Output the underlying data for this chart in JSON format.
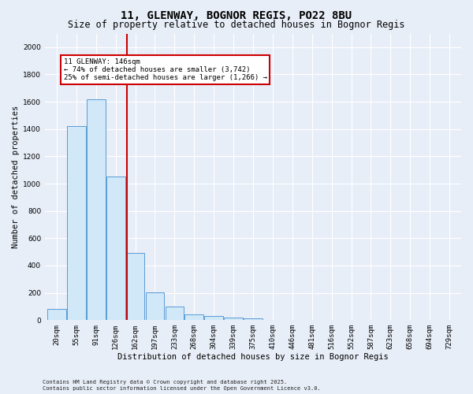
{
  "title1": "11, GLENWAY, BOGNOR REGIS, PO22 8BU",
  "title2": "Size of property relative to detached houses in Bognor Regis",
  "xlabel": "Distribution of detached houses by size in Bognor Regis",
  "ylabel": "Number of detached properties",
  "bar_labels": [
    "20sqm",
    "55sqm",
    "91sqm",
    "126sqm",
    "162sqm",
    "197sqm",
    "233sqm",
    "268sqm",
    "304sqm",
    "339sqm",
    "375sqm",
    "410sqm",
    "446sqm",
    "481sqm",
    "516sqm",
    "552sqm",
    "587sqm",
    "623sqm",
    "658sqm",
    "694sqm",
    "729sqm"
  ],
  "bar_values": [
    80,
    1420,
    1620,
    1050,
    490,
    205,
    100,
    40,
    28,
    20,
    15,
    0,
    0,
    0,
    0,
    0,
    0,
    0,
    0,
    0,
    0
  ],
  "bar_color": "#d0e8f8",
  "bar_edge_color": "#5b9bd5",
  "vline_color": "#cc0000",
  "ylim": [
    0,
    2100
  ],
  "yticks": [
    0,
    200,
    400,
    600,
    800,
    1000,
    1200,
    1400,
    1600,
    1800,
    2000
  ],
  "annotation_text": "11 GLENWAY: 146sqm\n← 74% of detached houses are smaller (3,742)\n25% of semi-detached houses are larger (1,266) →",
  "footer1": "Contains HM Land Registry data © Crown copyright and database right 2025.",
  "footer2": "Contains public sector information licensed under the Open Government Licence v3.0.",
  "bg_color": "#e8eef8",
  "plot_bg_color": "#e8eef8",
  "grid_color": "#ffffff",
  "title_fontsize": 10,
  "subtitle_fontsize": 8.5,
  "axis_label_fontsize": 7.5,
  "tick_fontsize": 6.5,
  "annotation_fontsize": 6.5,
  "footer_fontsize": 5.0
}
